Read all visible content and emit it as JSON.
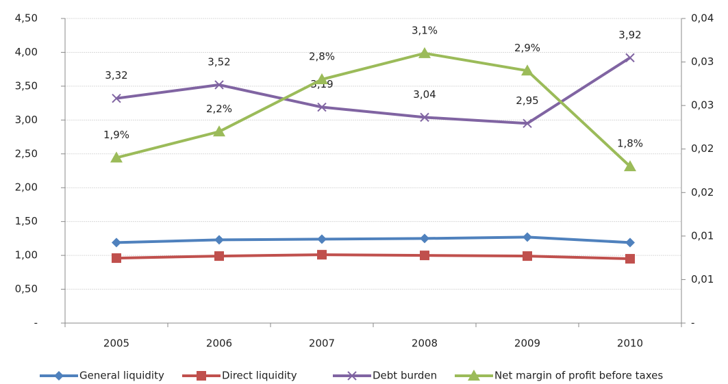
{
  "chart_data": {
    "type": "line",
    "categories": [
      "2005",
      "2006",
      "2007",
      "2008",
      "2009",
      "2010"
    ],
    "ylim": [
      0,
      4.5
    ],
    "yticks": [
      {
        "value": 0,
        "label": "-"
      },
      {
        "value": 0.5,
        "label": "0,50"
      },
      {
        "value": 1,
        "label": "1,00"
      },
      {
        "value": 1.5,
        "label": "1,50"
      },
      {
        "value": 2,
        "label": "2,00"
      },
      {
        "value": 2.5,
        "label": "2,50"
      },
      {
        "value": 3,
        "label": "3,00"
      },
      {
        "value": 3.5,
        "label": "3,50"
      },
      {
        "value": 4,
        "label": "4,00"
      },
      {
        "value": 4.5,
        "label": "4,50"
      }
    ],
    "y2lim": [
      0,
      0.035
    ],
    "y2ticks": [
      {
        "value": 0,
        "label": "-"
      },
      {
        "value": 0.005,
        "label": "0,01"
      },
      {
        "value": 0.01,
        "label": "0,01"
      },
      {
        "value": 0.015,
        "label": "0,02"
      },
      {
        "value": 0.02,
        "label": "0,02"
      },
      {
        "value": 0.025,
        "label": "0,03"
      },
      {
        "value": 0.03,
        "label": "0,03"
      },
      {
        "value": 0.035,
        "label": "0,04"
      }
    ],
    "grid": true,
    "legend": "bottom",
    "series": [
      {
        "name": "General liquidity",
        "color": "#4f81bd",
        "marker": "diamond",
        "values": [
          1.19,
          1.23,
          1.24,
          1.25,
          1.27,
          1.19
        ]
      },
      {
        "name": "Direct liquidity",
        "color": "#c0504d",
        "marker": "square",
        "values": [
          0.96,
          0.99,
          1.01,
          1.0,
          0.99,
          0.95
        ]
      },
      {
        "name": "Debt burden",
        "color": "#8064a2",
        "marker": "x",
        "values": [
          3.32,
          3.52,
          3.19,
          3.04,
          2.95,
          3.92
        ],
        "value_labels": [
          "3,32",
          "3,52",
          "3,19",
          "3,04",
          "2,95",
          "3,92"
        ]
      },
      {
        "name": "Net margin of profit before taxes",
        "color": "#9bbb59",
        "marker": "triangle",
        "axis": "y2",
        "values": [
          0.019,
          0.022,
          0.028,
          0.031,
          0.029,
          0.018
        ],
        "value_labels": [
          "1,9%",
          "2,2%",
          "2,8%",
          "3,1%",
          "2,9%",
          "1,8%"
        ]
      }
    ]
  }
}
